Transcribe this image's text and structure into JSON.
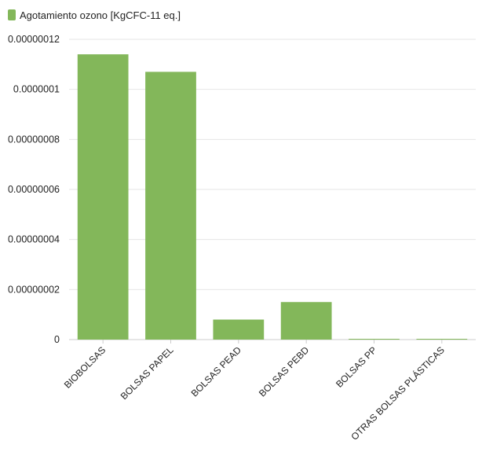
{
  "chart_data": {
    "type": "bar",
    "legend": {
      "label": "Agotamiento ozono [KgCFC-11 eq.]",
      "position": "top-left"
    },
    "categories": [
      "BIOBOLSAS",
      "BOLSAS PAPEL",
      "BOLSAS PEAD",
      "BOLSAS PEBD",
      "BOLSAS PP",
      "OTRAS BOLSAS PLÁSTICAS"
    ],
    "series": [
      {
        "name": "Agotamiento ozono [KgCFC-11 eq.]",
        "color": "#83b75a",
        "values": [
          1.14e-07,
          1.07e-07,
          8e-09,
          1.5e-08,
          1e-10,
          2e-10
        ]
      }
    ],
    "y_ticks": [
      "0",
      "0.00000002",
      "0.00000004",
      "0.00000006",
      "0.00000008",
      "0.0000001",
      "0.00000012"
    ],
    "y_tick_values": [
      0,
      2e-08,
      4e-08,
      6e-08,
      8e-08,
      1e-07,
      1.2e-07
    ],
    "ylim": [
      0,
      1.2e-07
    ],
    "grid": true
  }
}
